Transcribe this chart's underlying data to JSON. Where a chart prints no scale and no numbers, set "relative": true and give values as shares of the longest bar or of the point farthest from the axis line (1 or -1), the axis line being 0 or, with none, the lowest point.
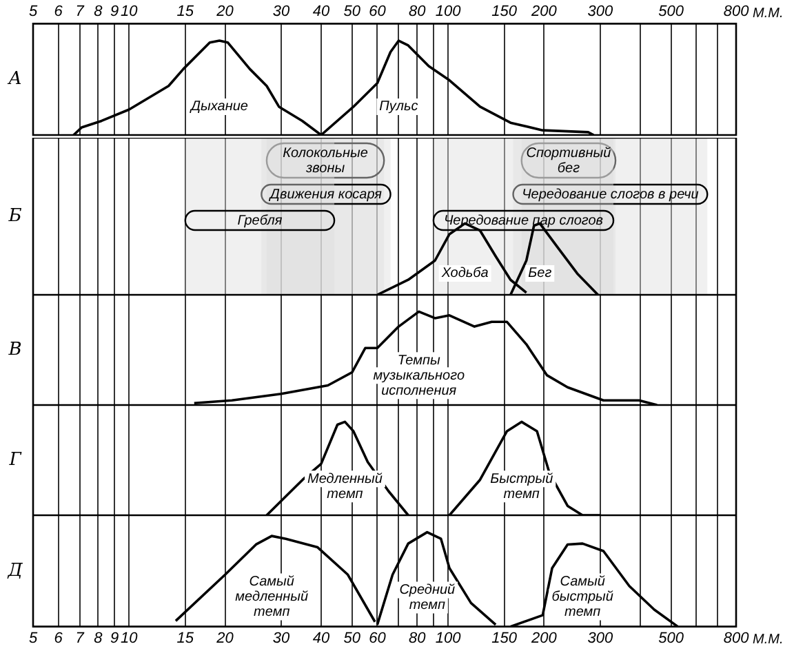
{
  "chart_data": [
    {
      "type": "line",
      "title": "А",
      "relative": true,
      "grid": "x",
      "marker": "none",
      "tick_labels": "x",
      "xlim": [
        5,
        800
      ],
      "xticks": [
        5,
        6,
        7,
        8,
        9,
        10,
        15,
        20,
        30,
        40,
        50,
        60,
        {
          "value": 70,
          "label": null
        },
        80,
        {
          "value": 90,
          "label": null
        },
        100,
        150,
        200,
        300,
        {
          "value": 400,
          "label": null
        },
        500,
        {
          "value": 600,
          "label": null
        },
        {
          "value": 700,
          "label": null
        },
        800
      ],
      "log": "x",
      "xlabel": "М.М.",
      "series": [
        {
          "name": "Дыхание",
          "color": "#000000",
          "x": [
            6.7,
            7.1,
            8.2,
            10,
            13.3,
            14.8,
            17.9,
            19.2,
            20.4,
            23.9,
            27,
            29.5,
            34.9,
            40
          ],
          "values": [
            0,
            0.08,
            0.15,
            0.27,
            0.52,
            0.7,
            0.98,
            1,
            0.98,
            0.7,
            0.52,
            0.3,
            0.15,
            0
          ]
        },
        {
          "name": "Пульс",
          "color": "#000000",
          "x": [
            40,
            50.5,
            60,
            66,
            70,
            75,
            87,
            101,
            126,
            157,
            198,
            275,
            286
          ],
          "values": [
            0,
            0.3,
            0.55,
            0.88,
            1,
            0.95,
            0.73,
            0.58,
            0.3,
            0.13,
            0.05,
            0.03,
            0
          ]
        }
      ]
    },
    {
      "type": "line",
      "title": "Б",
      "relative": true,
      "grid": "x",
      "marker": "none",
      "tick_labels": false,
      "xlim": [
        5,
        800
      ],
      "xticks": [
        5,
        6,
        7,
        8,
        9,
        10,
        15,
        20,
        30,
        40,
        50,
        60,
        {
          "value": 70,
          "label": null
        },
        80,
        {
          "value": 90,
          "label": null
        },
        100,
        150,
        200,
        300,
        {
          "value": 400,
          "label": null
        },
        500,
        {
          "value": 600,
          "label": null
        },
        {
          "value": 700,
          "label": null
        },
        800
      ],
      "log": "x",
      "series": [
        {
          "name": "Ходьба",
          "color": "#000000",
          "x": [
            60,
            75,
            91,
            101,
            113,
            126,
            141,
            157,
            176
          ],
          "values": [
            0,
            0.21,
            0.48,
            0.85,
            1,
            0.9,
            0.54,
            0.21,
            0.03
          ]
        },
        {
          "name": "Бег",
          "color": "#000000",
          "x": [
            157,
            176,
            186,
            194,
            221,
            254,
            295
          ],
          "values": [
            0,
            0.48,
            0.97,
            1,
            0.66,
            0.3,
            0
          ]
        }
      ],
      "bands": [
        {
          "axis": "x",
          "from": 170,
          "to": 335,
          "label": "Спортивный бег",
          "color": "#dddddd"
        },
        {
          "axis": "x",
          "from": 160,
          "to": 650,
          "label": "Чередование слогов в речи",
          "color": "#dddddd"
        },
        {
          "axis": "x",
          "from": 90,
          "to": 330,
          "label": "Чередование пар слогов",
          "color": "#dddddd"
        },
        {
          "axis": "x",
          "from": 27,
          "to": 63,
          "label": "Колокольные звоны",
          "color": "#dddddd"
        },
        {
          "axis": "x",
          "from": 26,
          "to": 66,
          "label": "Движения косаря",
          "color": "#dddddd"
        },
        {
          "axis": "x",
          "from": 15,
          "to": 44,
          "label": "Гребля",
          "color": "#dddddd"
        }
      ]
    },
    {
      "type": "line",
      "title": "В",
      "relative": true,
      "grid": "x",
      "marker": "none",
      "tick_labels": false,
      "xlim": [
        5,
        800
      ],
      "xticks": [
        5,
        6,
        7,
        8,
        9,
        10,
        15,
        20,
        30,
        40,
        50,
        60,
        {
          "value": 70,
          "label": null
        },
        80,
        {
          "value": 90,
          "label": null
        },
        100,
        150,
        200,
        300,
        {
          "value": 400,
          "label": null
        },
        500,
        {
          "value": 600,
          "label": null
        },
        {
          "value": 700,
          "label": null
        },
        800
      ],
      "log": "x",
      "series": [
        {
          "name": "Темпы музыкального исполнения",
          "color": "#000000",
          "x": [
            16,
            21,
            30,
            42,
            50,
            55,
            60,
            70,
            81,
            91,
            101,
            121,
            137,
            153,
            176,
            204,
            237,
            307,
            397,
            452
          ],
          "values": [
            0.02,
            0.05,
            0.12,
            0.21,
            0.35,
            0.61,
            0.61,
            0.84,
            1,
            0.93,
            0.96,
            0.84,
            0.89,
            0.89,
            0.65,
            0.32,
            0.19,
            0.05,
            0.05,
            0
          ]
        }
      ]
    },
    {
      "type": "line",
      "title": "Г",
      "relative": true,
      "grid": "x",
      "marker": "none",
      "tick_labels": false,
      "xlim": [
        5,
        800
      ],
      "xticks": [
        5,
        6,
        7,
        8,
        9,
        10,
        15,
        20,
        30,
        40,
        50,
        60,
        {
          "value": 70,
          "label": null
        },
        80,
        {
          "value": 90,
          "label": null
        },
        100,
        150,
        200,
        300,
        {
          "value": 400,
          "label": null
        },
        500,
        {
          "value": 600,
          "label": null
        },
        {
          "value": 700,
          "label": null
        },
        800
      ],
      "log": "x",
      "series": [
        {
          "name": "Медленный темп",
          "color": "#000000",
          "x": [
            27,
            35,
            40,
            45,
            47.5,
            50.5,
            56,
            65,
            75
          ],
          "values": [
            0,
            0.38,
            0.55,
            0.97,
            1,
            0.9,
            0.57,
            0.26,
            0
          ]
        },
        {
          "name": "Быстрый темп",
          "color": "#000000",
          "x": [
            101,
            126,
            153,
            170,
            190,
            208,
            237,
            264,
            300
          ],
          "values": [
            0,
            0.38,
            0.9,
            1,
            0.9,
            0.45,
            0.1,
            0,
            0
          ]
        }
      ]
    },
    {
      "type": "line",
      "title": "Д",
      "relative": true,
      "grid": "x",
      "marker": "none",
      "tick_labels": "x",
      "xlim": [
        5,
        800
      ],
      "xticks": [
        5,
        6,
        7,
        8,
        9,
        10,
        15,
        20,
        30,
        40,
        50,
        60,
        {
          "value": 70,
          "label": null
        },
        80,
        {
          "value": 90,
          "label": null
        },
        100,
        150,
        200,
        300,
        {
          "value": 400,
          "label": null
        },
        500,
        {
          "value": 600,
          "label": null
        },
        {
          "value": 700,
          "label": null
        },
        800
      ],
      "log": "x",
      "xlabel": "М.М.",
      "series": [
        {
          "name": "Самый медленный темп",
          "color": "#000000",
          "x": [
            14,
            20,
            25,
            28,
            31,
            39,
            48.5,
            59
          ],
          "values": [
            0.06,
            0.55,
            0.87,
            0.96,
            0.93,
            0.84,
            0.55,
            0.05
          ]
        },
        {
          "name": "Средний темп",
          "color": "#000000",
          "x": [
            60,
            67,
            75,
            86,
            95,
            101,
            118,
            141
          ],
          "values": [
            0.02,
            0.55,
            0.88,
            1,
            0.93,
            0.62,
            0.25,
            0.02
          ]
        },
        {
          "name": "Самый быстрый темп",
          "color": "#000000",
          "x": [
            157,
            198,
            212,
            237,
            264,
            307,
            370,
            443,
            525
          ],
          "values": [
            0,
            0.12,
            0.62,
            0.87,
            0.88,
            0.8,
            0.43,
            0.18,
            0
          ]
        }
      ]
    }
  ]
}
